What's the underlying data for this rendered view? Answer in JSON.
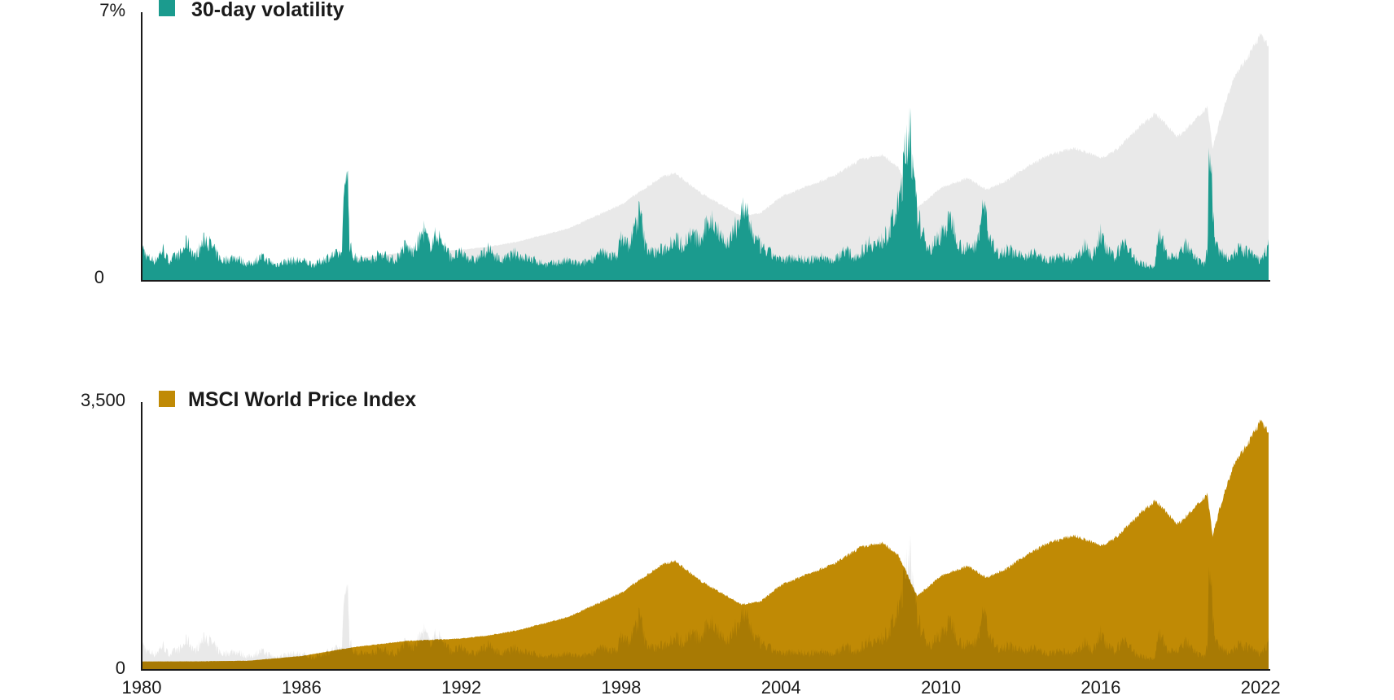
{
  "colors": {
    "volatility": "#1b9b8e",
    "index": "#c08a05",
    "index_dark": "#a87a04",
    "ghost": "#e9e9e9",
    "axis": "#1a1a1a"
  },
  "chart_data": [
    {
      "type": "area",
      "legend": "30-day volatility",
      "y_tick_labels": [
        "7%",
        "0"
      ],
      "ylim": [
        0,
        7
      ],
      "xlim": [
        1980,
        2022.3
      ],
      "grid": false,
      "legend_position": "top-left",
      "series": [
        {
          "name": "30-day volatility",
          "x": [
            1980.0,
            1980.2,
            1980.5,
            1980.8,
            1981.0,
            1981.5,
            1981.7,
            1982.0,
            1982.4,
            1982.7,
            1983.0,
            1983.5,
            1984.0,
            1984.5,
            1985.0,
            1985.5,
            1986.0,
            1986.5,
            1987.0,
            1987.5,
            1987.7,
            1987.76,
            1987.8,
            1987.86,
            1987.95,
            1988.5,
            1989.0,
            1989.5,
            1989.9,
            1990.2,
            1990.6,
            1990.8,
            1991.1,
            1991.6,
            1992.0,
            1992.5,
            1993.0,
            1993.5,
            1994.0,
            1994.3,
            1994.8,
            1995.2,
            1996.0,
            1996.5,
            1997.0,
            1997.3,
            1997.8,
            1998.0,
            1998.3,
            1998.7,
            1998.9,
            1999.2,
            1999.6,
            2000.0,
            2000.3,
            2000.6,
            2001.0,
            2001.3,
            2001.7,
            2001.9,
            2002.2,
            2002.6,
            2002.8,
            2003.0,
            2003.3,
            2003.6,
            2004.0,
            2004.5,
            2005.0,
            2005.5,
            2006.0,
            2006.4,
            2006.7,
            2007.0,
            2007.3,
            2007.6,
            2008.0,
            2008.4,
            2008.75,
            2008.85,
            2008.95,
            2009.1,
            2009.3,
            2009.6,
            2010.0,
            2010.4,
            2010.7,
            2011.0,
            2011.3,
            2011.65,
            2011.8,
            2012.1,
            2012.5,
            2013.0,
            2013.5,
            2014.0,
            2014.5,
            2015.0,
            2015.4,
            2015.7,
            2016.0,
            2016.2,
            2016.5,
            2016.9,
            2017.3,
            2017.7,
            2018.0,
            2018.15,
            2018.5,
            2018.9,
            2019.2,
            2019.6,
            2019.9,
            2020.0,
            2020.1,
            2020.2,
            2020.3,
            2020.5,
            2020.8,
            2021.2,
            2021.6,
            2022.0,
            2022.3
          ],
          "values": [
            0.9,
            0.6,
            0.5,
            0.8,
            0.5,
            0.7,
            1.0,
            0.6,
            1.1,
            0.8,
            0.5,
            0.6,
            0.4,
            0.6,
            0.4,
            0.5,
            0.5,
            0.4,
            0.6,
            0.7,
            3.4,
            2.0,
            1.0,
            0.8,
            0.6,
            0.5,
            0.7,
            0.5,
            0.9,
            0.7,
            1.3,
            0.9,
            1.2,
            0.6,
            0.7,
            0.5,
            0.8,
            0.5,
            0.7,
            0.6,
            0.5,
            0.4,
            0.5,
            0.4,
            0.6,
            0.7,
            0.6,
            1.1,
            0.9,
            1.8,
            0.9,
            0.7,
            0.8,
            1.1,
            0.9,
            1.2,
            1.0,
            1.6,
            1.3,
            0.9,
            1.2,
            1.9,
            1.5,
            1.1,
            0.8,
            0.7,
            0.5,
            0.6,
            0.5,
            0.6,
            0.5,
            0.8,
            0.6,
            0.7,
            1.0,
            0.9,
            1.2,
            1.9,
            3.7,
            4.4,
            2.6,
            1.8,
            1.2,
            0.8,
            1.2,
            1.6,
            0.9,
            0.8,
            0.9,
            2.0,
            1.1,
            0.7,
            0.8,
            0.6,
            0.7,
            0.5,
            0.6,
            0.5,
            0.9,
            0.6,
            1.2,
            0.8,
            0.6,
            1.0,
            0.5,
            0.4,
            0.3,
            1.2,
            0.7,
            0.6,
            0.9,
            0.5,
            0.4,
            0.8,
            4.3,
            1.8,
            1.0,
            0.7,
            0.6,
            0.8,
            0.7,
            0.5,
            0.9
          ]
        }
      ],
      "ghost_series": {
        "name": "MSCI World Price Index",
        "x": [
          1980.0,
          1982.0,
          1984.0,
          1986.0,
          1988.0,
          1990.0,
          1992.0,
          1993.0,
          1994.0,
          1996.0,
          1998.0,
          1999.5,
          2000.0,
          2001.0,
          2002.5,
          2003.2,
          2004.0,
          2005.0,
          2006.0,
          2007.0,
          2007.8,
          2008.4,
          2009.1,
          2009.6,
          2010.0,
          2011.0,
          2011.7,
          2012.5,
          2013.0,
          2014.0,
          2015.0,
          2016.0,
          2016.5,
          2017.0,
          2018.0,
          2018.2,
          2018.9,
          2019.5,
          2020.0,
          2020.2,
          2020.5,
          2021.0,
          2021.5,
          2022.0,
          2022.3
        ],
        "values": [
          98,
          100,
          108,
          170,
          290,
          370,
          400,
          440,
          500,
          680,
          1000,
          1360,
          1420,
          1150,
          850,
          880,
          1100,
          1250,
          1380,
          1600,
          1650,
          1500,
          960,
          1100,
          1220,
          1350,
          1200,
          1320,
          1450,
          1650,
          1750,
          1620,
          1700,
          1880,
          2200,
          2150,
          1900,
          2100,
          2300,
          1750,
          2150,
          2700,
          2950,
          3250,
          3100
        ]
      }
    },
    {
      "type": "area",
      "legend": "MSCI World Price Index",
      "y_tick_labels": [
        "3,500",
        "0"
      ],
      "ylim": [
        0,
        3500
      ],
      "xlim": [
        1980,
        2022.3
      ],
      "x_tick_labels": [
        "1980",
        "1986",
        "1992",
        "1998",
        "2004",
        "2010",
        "2016",
        "2022"
      ],
      "grid": false,
      "legend_position": "top-left"
    }
  ]
}
